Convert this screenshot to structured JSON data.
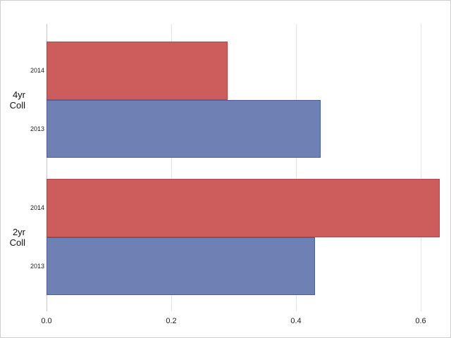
{
  "figure": {
    "background": "#ffffff",
    "border_color": "#cfcfcf"
  },
  "chart_data": {
    "type": "bar",
    "orientation": "horizontal",
    "title": "",
    "xlabel": "",
    "ylabel": "",
    "categories": [
      "4yr Coll",
      "2yr Coll"
    ],
    "category_lines": [
      [
        "4yr",
        "Coll"
      ],
      [
        "2yr",
        "Coll"
      ]
    ],
    "bar_order_within_group": [
      "2014",
      "2013"
    ],
    "series": [
      {
        "name": "2014",
        "values": [
          0.29,
          0.63
        ],
        "fill": "#cd5c5c",
        "border": "#a84a4a"
      },
      {
        "name": "2013",
        "values": [
          0.44,
          0.43
        ],
        "fill": "#6e80b4",
        "border": "#4e5c96"
      }
    ],
    "xticks": [
      {
        "label": "0.0",
        "value": 0.0
      },
      {
        "label": "0.2",
        "value": 0.2
      },
      {
        "label": "0.4",
        "value": 0.4
      },
      {
        "label": "0.6",
        "value": 0.6
      }
    ],
    "xlim": [
      0,
      0.648
    ],
    "grid": "vertical",
    "legend": "none",
    "axis_color": "#c6c6c6",
    "grid_color": "#e5e5e5",
    "text_color": "#1a1a1a"
  }
}
